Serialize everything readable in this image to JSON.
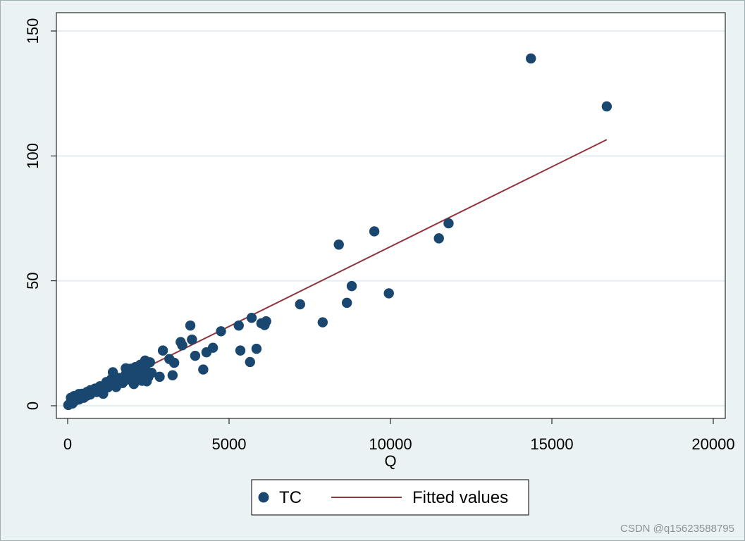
{
  "watermark": "CSDN @q15623588795",
  "colors": {
    "outer_bg": "#eaf2f3",
    "plot_bg": "#ffffff",
    "grid": "#e3eef0",
    "scatter": "#1a476f",
    "line": "#90353b"
  },
  "chart_data": {
    "type": "scatter",
    "title": "",
    "xlabel": "Q",
    "ylabel": "",
    "xlim": [
      0,
      20000
    ],
    "ylim": [
      0,
      150
    ],
    "x_ticks": [
      0,
      5000,
      10000,
      15000,
      20000
    ],
    "y_ticks": [
      0,
      50,
      100,
      150
    ],
    "x_tick_labels": [
      "0",
      "5000",
      "10000",
      "15000",
      "20000"
    ],
    "y_tick_labels": [
      "0",
      "50",
      "100",
      "150"
    ],
    "grid": "horizontal",
    "legend": {
      "placement": "bottom",
      "entries": [
        "TC",
        "Fitted values"
      ]
    },
    "series": [
      {
        "name": "TC",
        "kind": "scatter",
        "points": [
          [
            20,
            0.3
          ],
          [
            50,
            0.6
          ],
          [
            80,
            1.0
          ],
          [
            120,
            1.3
          ],
          [
            150,
            0.9
          ],
          [
            200,
            1.8
          ],
          [
            250,
            2.2
          ],
          [
            300,
            3.0
          ],
          [
            350,
            2.5
          ],
          [
            400,
            3.4
          ],
          [
            450,
            4.0
          ],
          [
            500,
            3.2
          ],
          [
            550,
            4.4
          ],
          [
            600,
            4.1
          ],
          [
            650,
            5.0
          ],
          [
            700,
            4.5
          ],
          [
            750,
            5.4
          ],
          [
            800,
            5.9
          ],
          [
            850,
            6.3
          ],
          [
            900,
            5.5
          ],
          [
            950,
            6.7
          ],
          [
            1000,
            6.1
          ],
          [
            1050,
            7.2
          ],
          [
            1100,
            6.6
          ],
          [
            1150,
            7.6
          ],
          [
            1200,
            8.2
          ],
          [
            1250,
            7.4
          ],
          [
            1300,
            8.6
          ],
          [
            1350,
            9.4
          ],
          [
            1400,
            8.8
          ],
          [
            1450,
            9.7
          ],
          [
            1500,
            7.5
          ],
          [
            1550,
            10.4
          ],
          [
            1600,
            9.6
          ],
          [
            1650,
            10.8
          ],
          [
            1700,
            9.1
          ],
          [
            1750,
            11.2
          ],
          [
            1800,
            12.6
          ],
          [
            1850,
            10.5
          ],
          [
            1900,
            11.8
          ],
          [
            2000,
            12.0
          ],
          [
            2050,
            8.7
          ],
          [
            2100,
            13.5
          ],
          [
            2200,
            11.4
          ],
          [
            2250,
            14.6
          ],
          [
            2300,
            10.0
          ],
          [
            2350,
            12.9
          ],
          [
            2400,
            15.8
          ],
          [
            2500,
            11.5
          ],
          [
            2550,
            17.4
          ],
          [
            100,
            3.2
          ],
          [
            200,
            3.9
          ],
          [
            350,
            4.7
          ],
          [
            450,
            4.8
          ],
          [
            600,
            5.5
          ],
          [
            700,
            6.2
          ],
          [
            850,
            6.9
          ],
          [
            1000,
            7.8
          ],
          [
            1100,
            4.8
          ],
          [
            1200,
            9.5
          ],
          [
            1350,
            10.6
          ],
          [
            1400,
            13.4
          ],
          [
            1500,
            9.9
          ],
          [
            1600,
            11.1
          ],
          [
            1800,
            15.0
          ],
          [
            1950,
            14.8
          ],
          [
            2100,
            15.5
          ],
          [
            2250,
            16.4
          ],
          [
            2400,
            18.1
          ],
          [
            2450,
            9.8
          ],
          [
            2600,
            13.2
          ],
          [
            2850,
            11.6
          ],
          [
            2950,
            22.1
          ],
          [
            3150,
            18.7
          ],
          [
            3250,
            12.2
          ],
          [
            3300,
            17.2
          ],
          [
            3500,
            25.5
          ],
          [
            3550,
            24.2
          ],
          [
            3800,
            32.1
          ],
          [
            3850,
            26.5
          ],
          [
            3950,
            20.0
          ],
          [
            4200,
            14.5
          ],
          [
            4300,
            21.4
          ],
          [
            4500,
            23.2
          ],
          [
            4750,
            29.8
          ],
          [
            5300,
            32.1
          ],
          [
            5350,
            22.1
          ],
          [
            5650,
            17.5
          ],
          [
            5700,
            35.2
          ],
          [
            5850,
            22.8
          ],
          [
            6000,
            33.0
          ],
          [
            6100,
            32.3
          ],
          [
            6150,
            33.8
          ],
          [
            7200,
            40.6
          ],
          [
            7900,
            33.4
          ],
          [
            8400,
            64.5
          ],
          [
            8650,
            41.2
          ],
          [
            8800,
            47.9
          ],
          [
            9500,
            69.8
          ],
          [
            9950,
            45.0
          ],
          [
            11500,
            67.0
          ],
          [
            11800,
            73.0
          ],
          [
            14350,
            139.0
          ],
          [
            16700,
            119.8
          ]
        ]
      },
      {
        "name": "Fitted values",
        "kind": "line",
        "points": [
          [
            0,
            -0.2
          ],
          [
            16700,
            106.5
          ]
        ]
      }
    ]
  }
}
